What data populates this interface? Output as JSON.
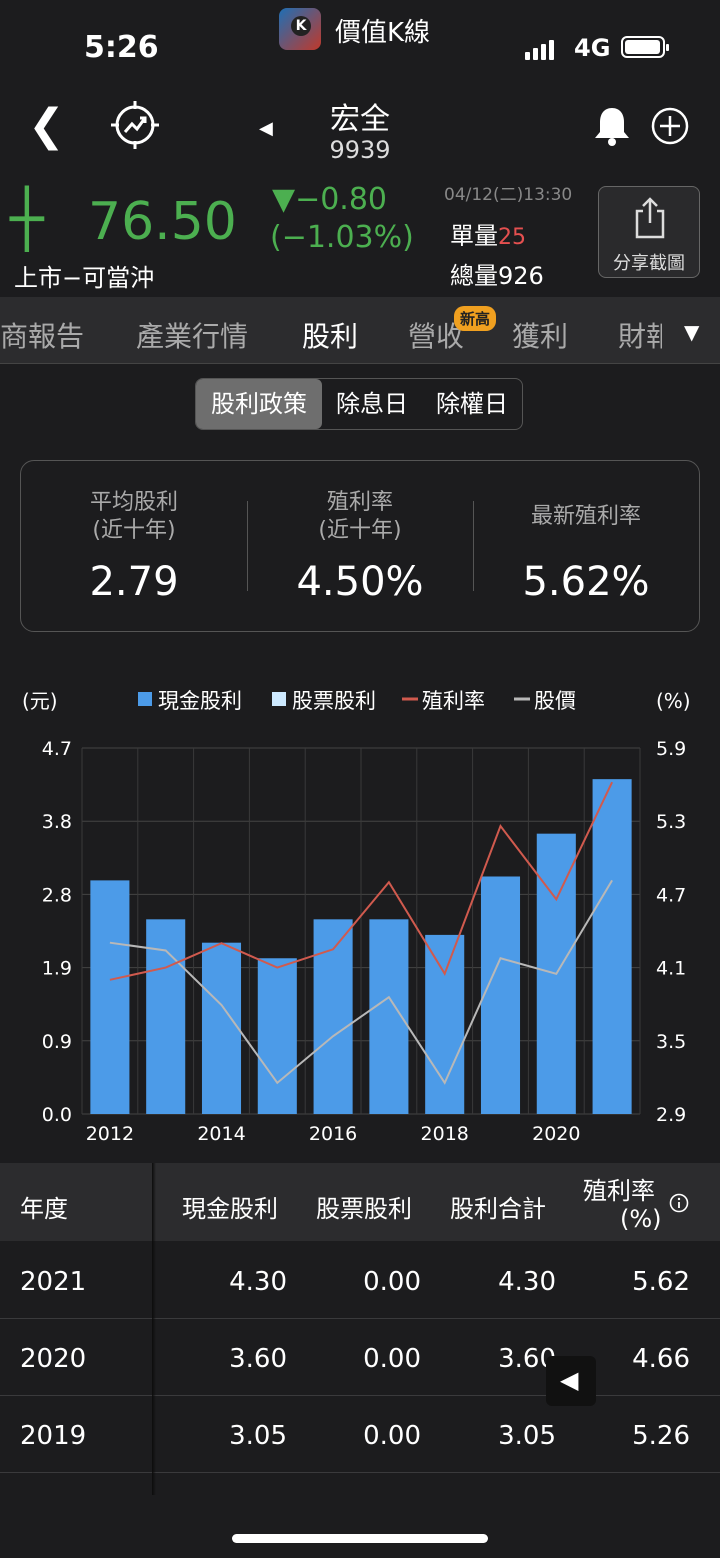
{
  "status": {
    "time": "5:26",
    "app_name": "價值K線",
    "network": "4G"
  },
  "header": {
    "stock_name": "宏全",
    "stock_code": "9939"
  },
  "quote": {
    "price": "76.50",
    "change": "▼−0.80",
    "change_pct": "(−1.03%)",
    "market": "上市−可當沖",
    "date": "04/12(二)13:30",
    "unit_vol_label": "單量",
    "unit_vol": "25",
    "total_vol_label": "總量",
    "total_vol": "926",
    "share_label": "分享截圖"
  },
  "tabs": [
    {
      "label": "商報告"
    },
    {
      "label": "產業行情"
    },
    {
      "label": "股利"
    },
    {
      "label": "營收"
    },
    {
      "label": "獲利"
    },
    {
      "label": "財報"
    }
  ],
  "tab_badge": "新高",
  "subtabs": [
    {
      "label": "股利政策"
    },
    {
      "label": "除息日"
    },
    {
      "label": "除權日"
    }
  ],
  "summary": [
    {
      "label1": "平均股利",
      "label2": "(近十年)",
      "value": "2.79"
    },
    {
      "label1": "殖利率",
      "label2": "(近十年)",
      "value": "4.50%"
    },
    {
      "label1": "最新殖利率",
      "label2": "",
      "value": "5.62%"
    }
  ],
  "chart_data": {
    "type": "bar",
    "left_unit": "(元)",
    "right_unit": "(%)",
    "legend": [
      "現金股利",
      "股票股利",
      "殖利率",
      "股價"
    ],
    "colors": {
      "cash": "#4c9be8",
      "stock": "#cde9ff",
      "yield": "#d05a4e",
      "price": "#b8b8b8"
    },
    "x": [
      2012,
      2013,
      2014,
      2015,
      2016,
      2017,
      2018,
      2019,
      2020,
      2021
    ],
    "x_tick_labels": [
      "2012",
      "2014",
      "2016",
      "2018",
      "2020"
    ],
    "y_left_ticks": [
      "0.0",
      "0.9",
      "1.9",
      "2.8",
      "3.8",
      "4.7"
    ],
    "y_right_ticks": [
      "2.9",
      "3.5",
      "4.1",
      "4.7",
      "5.3",
      "5.9"
    ],
    "y_left_range": [
      0,
      4.7
    ],
    "y_right_range": [
      2.9,
      5.9
    ],
    "series": [
      {
        "name": "現金股利",
        "axis": "left",
        "values": [
          3.0,
          2.5,
          2.2,
          2.0,
          2.5,
          2.5,
          2.3,
          3.05,
          3.6,
          4.3
        ]
      },
      {
        "name": "股票股利",
        "axis": "left",
        "values": [
          0,
          0,
          0,
          0,
          0,
          0,
          0,
          0,
          0,
          0
        ]
      },
      {
        "name": "殖利率",
        "axis": "right",
        "values": [
          4.0,
          4.1,
          4.3,
          4.1,
          4.25,
          4.8,
          4.05,
          5.26,
          4.66,
          5.62
        ]
      },
      {
        "name": "股價",
        "axis": "left",
        "values": [
          2.2,
          2.1,
          1.4,
          0.4,
          1.0,
          1.5,
          0.4,
          2.0,
          1.8,
          3.0
        ]
      }
    ]
  },
  "table": {
    "headers": [
      "年度",
      "現金股利",
      "股票股利",
      "股利合計",
      "殖利率",
      "(%)"
    ],
    "rows": [
      [
        "2021",
        "4.30",
        "0.00",
        "4.30",
        "5.62"
      ],
      [
        "2020",
        "3.60",
        "0.00",
        "3.60",
        "4.66"
      ],
      [
        "2019",
        "3.05",
        "0.00",
        "3.05",
        "5.26"
      ]
    ]
  }
}
